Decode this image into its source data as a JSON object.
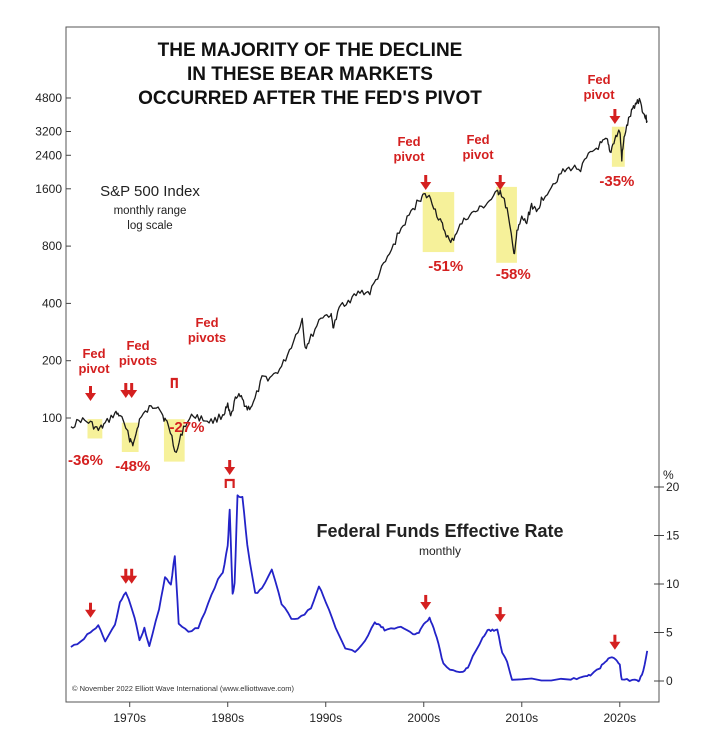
{
  "colors": {
    "spx_line": "#1a1a1a",
    "rate_line": "#2323c8",
    "highlight": "#f6f19a",
    "annotation": "#d42020",
    "frame": "#555555"
  },
  "chart_data": [
    {
      "type": "line",
      "title": "THE MAJORITY OF THE DECLINE IN THESE BEAR MARKETS OCCURRED AFTER THE FED'S PIVOT",
      "title_lines": [
        "THE MAJORITY OF THE DECLINE",
        "IN THESE BEAR MARKETS",
        "OCCURRED AFTER THE FED'S PIVOT"
      ],
      "series_label": "S&P 500 Index",
      "series_sublabel_1": "monthly range",
      "series_sublabel_2": "log scale",
      "y_scale": "log",
      "yticks": [
        100,
        200,
        400,
        800,
        1600,
        2400,
        3200,
        4800
      ],
      "ytick_labels": [
        "100",
        "200",
        "400",
        "800",
        "1600",
        "2400",
        "3200",
        "4800"
      ],
      "x": [
        1964.0,
        1965.0,
        1966.0,
        1966.8,
        1967.5,
        1968.5,
        1969.0,
        1970.0,
        1970.4,
        1971.0,
        1972.0,
        1972.9,
        1973.5,
        1974.0,
        1974.75,
        1975.5,
        1976.5,
        1977.5,
        1978.5,
        1979.5,
        1980.0,
        1980.3,
        1980.9,
        1981.5,
        1982.0,
        1982.6,
        1983.5,
        1984.5,
        1985.5,
        1986.5,
        1987.6,
        1987.9,
        1988.5,
        1989.5,
        1990.5,
        1990.8,
        1991.5,
        1992.5,
        1993.5,
        1994.5,
        1995.5,
        1996.5,
        1997.5,
        1998.5,
        1999.5,
        2000.0,
        2000.7,
        2001.5,
        2002.0,
        2002.75,
        2003.5,
        2004.5,
        2005.5,
        2006.5,
        2007.5,
        2007.8,
        2008.5,
        2009.2,
        2009.5,
        2010.0,
        2010.5,
        2011.0,
        2011.5,
        2012.0,
        2013.0,
        2014.0,
        2015.0,
        2016.0,
        2017.0,
        2018.0,
        2018.7,
        2019.0,
        2019.5,
        2020.0,
        2020.2,
        2020.5,
        2021.0,
        2021.5,
        2022.0,
        2022.5,
        2022.8
      ],
      "y": [
        90,
        98,
        94,
        86,
        93,
        106,
        104,
        78,
        73,
        98,
        112,
        118,
        100,
        90,
        65,
        90,
        104,
        98,
        96,
        104,
        115,
        100,
        132,
        125,
        112,
        118,
        160,
        165,
        185,
        240,
        330,
        235,
        265,
        340,
        350,
        300,
        390,
        420,
        460,
        455,
        580,
        720,
        950,
        1150,
        1400,
        1480,
        1430,
        1120,
        1000,
        820,
        990,
        1150,
        1230,
        1350,
        1520,
        1560,
        1250,
        720,
        930,
        1120,
        1060,
        1330,
        1190,
        1400,
        1650,
        1930,
        2060,
        2050,
        2450,
        2720,
        2880,
        2450,
        2950,
        3230,
        2300,
        3100,
        3800,
        4400,
        4750,
        3900,
        3650
      ],
      "xlim": [
        1963.5,
        2024.0
      ]
    },
    {
      "type": "line",
      "title": "Federal Funds Effective Rate",
      "subtitle": "monthly",
      "y_unit": "%",
      "yticks": [
        0,
        5,
        10,
        15,
        20
      ],
      "ytick_labels": [
        "0",
        "5",
        "10",
        "15",
        "20"
      ],
      "x": [
        1964.0,
        1965.0,
        1966.0,
        1966.8,
        1967.5,
        1968.5,
        1969.0,
        1969.6,
        1970.5,
        1971.0,
        1971.5,
        1972.0,
        1973.0,
        1973.6,
        1974.2,
        1974.6,
        1975.0,
        1976.0,
        1977.0,
        1978.0,
        1979.0,
        1979.5,
        1980.0,
        1980.2,
        1980.5,
        1980.7,
        1981.0,
        1981.5,
        1982.0,
        1982.8,
        1983.5,
        1984.5,
        1985.5,
        1986.5,
        1987.5,
        1988.5,
        1989.3,
        1990.0,
        1991.0,
        1992.0,
        1993.0,
        1994.0,
        1995.0,
        1995.5,
        1996.0,
        1997.0,
        1998.0,
        1998.9,
        1999.5,
        2000.0,
        2000.6,
        2001.0,
        2001.5,
        2002.0,
        2003.0,
        2004.0,
        2004.5,
        2005.0,
        2006.0,
        2006.5,
        2007.0,
        2007.5,
        2008.0,
        2008.5,
        2009.0,
        2012.0,
        2015.0,
        2015.9,
        2016.5,
        2017.0,
        2018.0,
        2018.5,
        2019.0,
        2019.6,
        2020.0,
        2020.2,
        2021.0,
        2021.8,
        2022.0,
        2022.4,
        2022.8
      ],
      "y": [
        3.5,
        4.1,
        5.1,
        5.7,
        4.0,
        5.9,
        8.0,
        9.2,
        6.6,
        4.2,
        5.4,
        3.5,
        7.5,
        10.6,
        10.0,
        12.9,
        6.0,
        5.0,
        5.5,
        7.9,
        10.5,
        11.2,
        14.0,
        17.6,
        9.0,
        10.0,
        19.1,
        19.0,
        14.0,
        9.0,
        9.5,
        11.6,
        8.0,
        6.4,
        6.6,
        7.6,
        9.8,
        8.2,
        5.5,
        3.3,
        3.0,
        4.2,
        6.0,
        5.8,
        5.3,
        5.5,
        5.5,
        4.8,
        5.0,
        5.8,
        6.5,
        5.5,
        3.8,
        1.7,
        1.0,
        1.0,
        1.4,
        2.5,
        4.5,
        5.25,
        5.25,
        5.25,
        3.0,
        2.0,
        0.2,
        0.15,
        0.12,
        0.37,
        0.4,
        0.66,
        1.4,
        1.9,
        2.4,
        2.3,
        1.6,
        0.1,
        0.1,
        0.08,
        0.08,
        1.0,
        3.1
      ],
      "xticks": [
        1970,
        1980,
        1990,
        2000,
        2010,
        2020
      ],
      "xtick_labels": [
        "1970s",
        "1980s",
        "1990s",
        "2000s",
        "2010s",
        "2020s"
      ],
      "xlim": [
        1963.5,
        2024.0
      ],
      "ylim": [
        0,
        20
      ]
    }
  ],
  "annotations": {
    "pivots": [
      {
        "label1": "Fed",
        "label2": "pivot",
        "x": 1966.0,
        "decline": "-36%",
        "hl_from": 1966.0,
        "hl_to": 1966.9
      },
      {
        "label1": "Fed",
        "label2": "pivots",
        "x": 1969.6,
        "x2": 1970.2,
        "decline": "-48%",
        "hl_from": 1969.5,
        "hl_to": 1970.6
      },
      {
        "label1": "Fed",
        "label2": "pivots",
        "x": 1974.3,
        "x2": 1974.8,
        "decline": "-27%",
        "hl_from": 1973.8,
        "hl_to": 1975.3
      },
      {
        "label1": "Fed",
        "label2": "pivot",
        "x": 2000.2,
        "decline": "-51%",
        "hl_from": 2000.2,
        "hl_to": 2002.8
      },
      {
        "label1": "Fed",
        "label2": "pivot",
        "x": 2007.8,
        "decline": "-58%",
        "hl_from": 2007.7,
        "hl_to": 2009.2
      },
      {
        "label1": "Fed",
        "label2": "pivot",
        "x": 2019.5,
        "decline": "-35%",
        "hl_from": 2019.5,
        "hl_to": 2020.2
      }
    ],
    "rate_arrows": [
      1966.0,
      1969.6,
      1970.2,
      1980.2,
      2000.2,
      2007.8,
      2019.5
    ]
  },
  "copyright": "© November 2022 Elliott Wave International (www.elliottwave.com)"
}
